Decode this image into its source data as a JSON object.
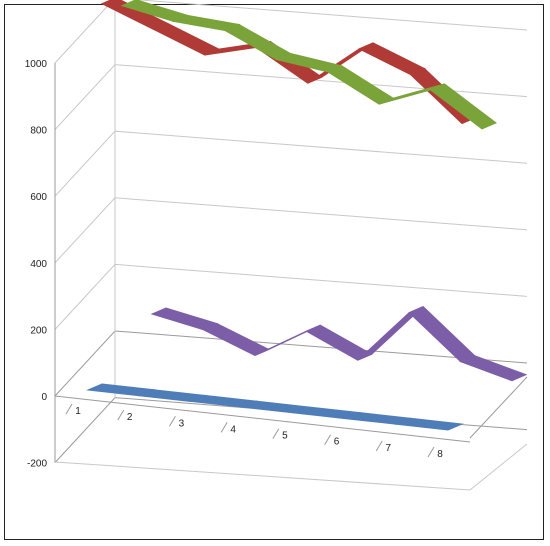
{
  "chart_data": {
    "type": "line",
    "subtype": "3d-line",
    "title": "",
    "xlabel": "",
    "ylabel": "",
    "x": [
      "1",
      "2",
      "3",
      "4",
      "5",
      "6",
      "7",
      "8"
    ],
    "yticks": [
      "-200",
      "0",
      "200",
      "400",
      "600",
      "800",
      "1000"
    ],
    "ylim": [
      -200,
      1000
    ],
    "grid": true,
    "legend": "none",
    "series": [
      {
        "color": "#4f7db8",
        "values": [
          0,
          0,
          0,
          0,
          0,
          0,
          0,
          0
        ]
      },
      {
        "color": "#7b5ea7",
        "values": [
          120,
          90,
          30,
          120,
          50,
          210,
          80,
          40
        ]
      },
      {
        "color": "#b03a36",
        "values": [
          980,
          920,
          860,
          900,
          810,
          930,
          870,
          740
        ]
      },
      {
        "color": "#7aa33a",
        "values": [
          1040,
          1010,
          1000,
          930,
          910,
          830,
          890,
          790
        ]
      }
    ]
  }
}
